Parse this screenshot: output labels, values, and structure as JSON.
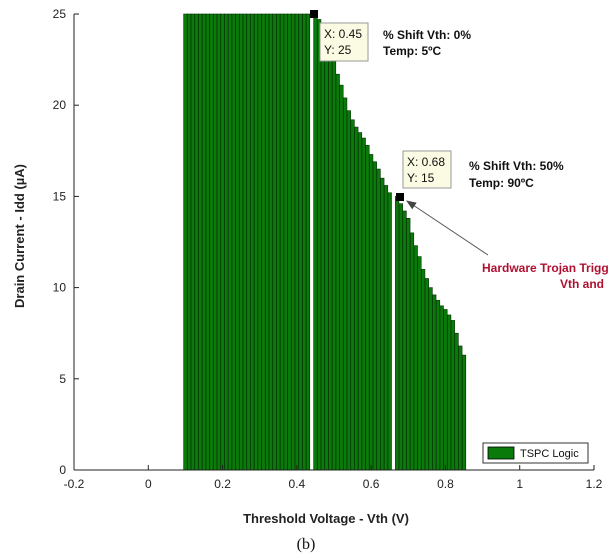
{
  "chart_data": {
    "type": "bar",
    "xlabel": "Threshold Voltage - Vth (V)",
    "ylabel": "Drain Current - Idd (µA)",
    "xlim": [
      -0.2,
      1.2
    ],
    "ylim": [
      0,
      25
    ],
    "xticks": [
      -0.2,
      0,
      0.2,
      0.4,
      0.6,
      0.8,
      1,
      1.2
    ],
    "xtick_labels": [
      "-0.2",
      "0",
      "0.2",
      "0.4",
      "0.6",
      "0.8",
      "1",
      "1.2"
    ],
    "yticks": [
      0,
      5,
      10,
      15,
      20,
      25
    ],
    "ytick_labels": [
      "0",
      "5",
      "10",
      "15",
      "20",
      "25"
    ],
    "grid": false,
    "legend_position": "bottom-right",
    "series": [
      {
        "name": "TSPC Logic",
        "color": "#0a7a0a",
        "x": [
          0.1,
          0.11,
          0.12,
          0.13,
          0.14,
          0.15,
          0.16,
          0.17,
          0.18,
          0.19,
          0.2,
          0.21,
          0.22,
          0.23,
          0.24,
          0.25,
          0.26,
          0.27,
          0.28,
          0.29,
          0.3,
          0.31,
          0.32,
          0.33,
          0.34,
          0.35,
          0.36,
          0.37,
          0.38,
          0.39,
          0.4,
          0.41,
          0.42,
          0.43,
          0.45,
          0.46,
          0.47,
          0.48,
          0.49,
          0.5,
          0.51,
          0.52,
          0.53,
          0.54,
          0.55,
          0.56,
          0.57,
          0.58,
          0.59,
          0.6,
          0.61,
          0.62,
          0.63,
          0.64,
          0.65,
          0.67,
          0.68,
          0.69,
          0.7,
          0.71,
          0.72,
          0.73,
          0.74,
          0.75,
          0.76,
          0.77,
          0.78,
          0.79,
          0.8,
          0.81,
          0.82,
          0.83,
          0.84,
          0.85
        ],
        "values": [
          25,
          25,
          25,
          25,
          25,
          25,
          25,
          25,
          25,
          25,
          25,
          25,
          25,
          25,
          25,
          25,
          25,
          25,
          25,
          25,
          25,
          25,
          25,
          25,
          25,
          25,
          25,
          25,
          25,
          25,
          25,
          25,
          25,
          25,
          25,
          24.7,
          24.2,
          23.6,
          23,
          22.4,
          21.7,
          21.1,
          20.4,
          19.7,
          19.2,
          18.8,
          18.5,
          18.2,
          17.8,
          17.3,
          16.9,
          16.5,
          16.0,
          15.6,
          15.2,
          15,
          14.6,
          14.2,
          13.8,
          13.0,
          12.3,
          11.7,
          11.0,
          10.5,
          10.0,
          9.6,
          9.3,
          9.0,
          8.8,
          8.5,
          8.2,
          7.5,
          6.8,
          6.3
        ]
      }
    ],
    "datatips": [
      {
        "x_text": "X: 0.45",
        "y_text": "Y: 25",
        "x": 0.45,
        "y": 25
      },
      {
        "x_text": "X: 0.68",
        "y_text": "Y: 15",
        "x": 0.68,
        "y": 15
      }
    ],
    "annotations": [
      {
        "line1": "% Shift Vth:  0%",
        "line2": "Temp:  5ºC"
      },
      {
        "line1": "% Shift Vth:  50%",
        "line2": "Temp:  90ºC"
      },
      {
        "line1": "Hardware Trojan Trigg",
        "line2": "Vth and"
      }
    ]
  },
  "caption": "(b)"
}
